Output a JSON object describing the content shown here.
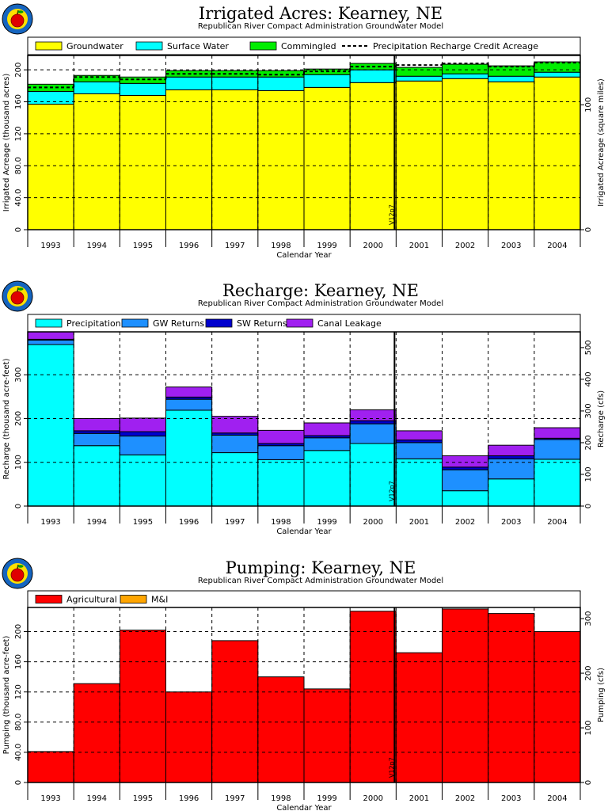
{
  "chart_data": [
    {
      "type": "bar",
      "stacked": true,
      "title": "Irrigated Acres: Kearney, NE",
      "subtitle": "Republican River Compact Administration Groundwater Model",
      "xlabel": "Calendar Year",
      "ylabel": "Irrigated Acreage (thousand acres)",
      "y2label": "Irrigated Acreage (square miles)",
      "categories": [
        "1993",
        "1994",
        "1995",
        "1996",
        "1997",
        "1998",
        "1999",
        "2000",
        "2001",
        "2002",
        "2003",
        "2004"
      ],
      "ylim": [
        0,
        218
      ],
      "yticks": [
        "0",
        "40.0",
        "80.0",
        "120",
        "160",
        "200"
      ],
      "yticks_values": [
        0,
        40,
        80,
        120,
        160,
        200
      ],
      "y2ticks": [
        "0",
        "100",
        "200",
        "300"
      ],
      "y2ticks_values": [
        0,
        100,
        200,
        300
      ],
      "y2_scale": 0.64,
      "grid": true,
      "legend_position": "top",
      "marker": {
        "label": "V12p7",
        "between": [
          "2000",
          "2001"
        ]
      },
      "series": [
        {
          "name": "Groundwater",
          "color": "#ffff00",
          "values": [
            157,
            170,
            168,
            175,
            175,
            174,
            178,
            184,
            186,
            189,
            185,
            191
          ]
        },
        {
          "name": "Surface Water",
          "color": "#00ffff",
          "values": [
            16,
            15,
            15,
            16,
            16,
            17,
            16,
            16,
            6,
            6,
            7,
            6
          ]
        },
        {
          "name": "Commingled",
          "color": "#00ee00",
          "values": [
            9,
            8,
            8,
            8,
            8,
            8,
            7,
            8,
            11,
            12,
            13,
            13
          ]
        }
      ],
      "line": {
        "name": "Precipitation Recharge Credit Acreage",
        "values": [
          178,
          191,
          188,
          195,
          195,
          194,
          198,
          204,
          206,
          208,
          204,
          209
        ]
      }
    },
    {
      "type": "bar",
      "stacked": true,
      "title": "Recharge: Kearney, NE",
      "subtitle": "Republican River Compact Administration Groundwater Model",
      "xlabel": "Calendar Year",
      "ylabel": "Recharge (thousand acre-feet)",
      "y2label": "Recharge (cfs)",
      "categories": [
        "1993",
        "1994",
        "1995",
        "1996",
        "1997",
        "1998",
        "1999",
        "2000",
        "2001",
        "2002",
        "2003",
        "2004"
      ],
      "ylim": [
        0,
        398
      ],
      "yticks": [
        "0",
        "100",
        "200",
        "300"
      ],
      "yticks_values": [
        0,
        100,
        200,
        300
      ],
      "y2ticks": [
        "0",
        "100",
        "200",
        "300",
        "400",
        "500"
      ],
      "y2ticks_values": [
        0,
        100,
        200,
        300,
        400,
        500
      ],
      "y2_scale": 1.381,
      "grid": true,
      "legend_position": "top",
      "marker": {
        "label": "V12p7",
        "between": [
          "2000",
          "2001"
        ]
      },
      "series": [
        {
          "name": "Precipitation",
          "color": "#00ffff",
          "values": [
            369,
            138,
            117,
            219,
            122,
            106,
            127,
            143,
            108,
            35,
            62,
            107
          ]
        },
        {
          "name": "GW Returns",
          "color": "#1e90ff",
          "values": [
            10,
            28,
            43,
            25,
            40,
            32,
            29,
            45,
            37,
            48,
            46,
            45
          ]
        },
        {
          "name": "SW Returns",
          "color": "#0000cd",
          "values": [
            2,
            6,
            10,
            5,
            5,
            5,
            5,
            7,
            6,
            6,
            7,
            3
          ]
        },
        {
          "name": "Canal Leakage",
          "color": "#a020f0",
          "values": [
            17,
            28,
            31,
            23,
            38,
            30,
            29,
            25,
            21,
            26,
            24,
            24
          ]
        }
      ]
    },
    {
      "type": "bar",
      "stacked": true,
      "title": "Pumping: Kearney, NE",
      "subtitle": "Republican River Compact Administration Groundwater Model",
      "xlabel": "Calendar Year",
      "ylabel": "Pumping (thousand acre-feet)",
      "y2label": "Pumping (cfs)",
      "categories": [
        "1993",
        "1994",
        "1995",
        "1996",
        "1997",
        "1998",
        "1999",
        "2000",
        "2001",
        "2002",
        "2003",
        "2004"
      ],
      "ylim": [
        0,
        232
      ],
      "yticks": [
        "0",
        "40.0",
        "80.0",
        "120",
        "160",
        "200"
      ],
      "yticks_values": [
        0,
        40,
        80,
        120,
        160,
        200
      ],
      "y2ticks": [
        "0",
        "100",
        "200",
        "300"
      ],
      "y2ticks_values": [
        0,
        100,
        200,
        300
      ],
      "y2_scale": 1.381,
      "grid": true,
      "legend_position": "top",
      "marker": {
        "label": "V12p7",
        "between": [
          "2000",
          "2001"
        ]
      },
      "series": [
        {
          "name": "Agricultural",
          "color": "#ff0000",
          "values": [
            41,
            131,
            202,
            120,
            188,
            140,
            124,
            227,
            172,
            230,
            224,
            200
          ]
        },
        {
          "name": "M&I",
          "color": "#ffa500",
          "values": [
            0,
            0,
            0,
            0,
            0,
            0,
            0,
            0,
            0,
            0,
            0,
            0
          ]
        }
      ]
    }
  ]
}
